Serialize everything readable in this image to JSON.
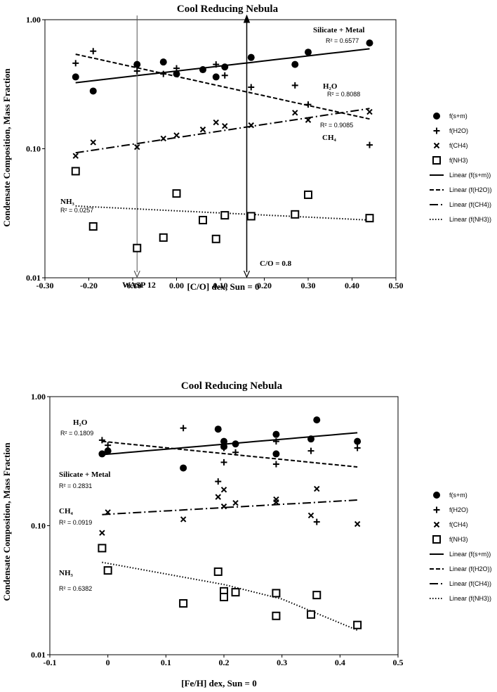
{
  "chart_data": [
    {
      "type": "scatter",
      "title": "Cool Reducing Nebula",
      "xlabel": "[C/O] dex, Sun = 0",
      "ylabel": "Condensate Composition, Mass Fraction",
      "xlim": [
        -0.3,
        0.5
      ],
      "ylim": [
        0.01,
        1.0
      ],
      "yscale": "log",
      "x_ticks": [
        "-0.30",
        "-0.20",
        "-0.10",
        "0.00",
        "0.10",
        "0.20",
        "0.30",
        "0.40",
        "0.50"
      ],
      "y_ticks": [
        "0.01",
        "0.10",
        "1.00"
      ],
      "grid": false,
      "legend_position": "right",
      "series": [
        {
          "name": "f(s+m)",
          "marker": "circle",
          "points": [
            [
              -0.23,
              0.36
            ],
            [
              -0.19,
              0.28
            ],
            [
              -0.09,
              0.45
            ],
            [
              -0.03,
              0.47
            ],
            [
              0.0,
              0.38
            ],
            [
              0.06,
              0.41
            ],
            [
              0.09,
              0.36
            ],
            [
              0.11,
              0.43
            ],
            [
              0.17,
              0.51
            ],
            [
              0.27,
              0.45
            ],
            [
              0.3,
              0.56
            ],
            [
              0.44,
              0.66
            ]
          ]
        },
        {
          "name": "f(H2O)",
          "marker": "plus",
          "points": [
            [
              -0.23,
              0.46
            ],
            [
              -0.19,
              0.57
            ],
            [
              -0.09,
              0.4
            ],
            [
              -0.03,
              0.38
            ],
            [
              0.0,
              0.42
            ],
            [
              0.09,
              0.45
            ],
            [
              0.11,
              0.37
            ],
            [
              0.17,
              0.3
            ],
            [
              0.27,
              0.31
            ],
            [
              0.3,
              0.22
            ],
            [
              0.44,
              0.107
            ]
          ]
        },
        {
          "name": "f(CH4)",
          "marker": "cross",
          "points": [
            [
              -0.23,
              0.088
            ],
            [
              -0.19,
              0.112
            ],
            [
              -0.09,
              0.103
            ],
            [
              -0.03,
              0.12
            ],
            [
              0.0,
              0.127
            ],
            [
              0.06,
              0.141
            ],
            [
              0.09,
              0.16
            ],
            [
              0.11,
              0.15
            ],
            [
              0.17,
              0.152
            ],
            [
              0.27,
              0.19
            ],
            [
              0.3,
              0.167
            ],
            [
              0.44,
              0.193
            ]
          ]
        },
        {
          "name": "f(NH3)",
          "marker": "square",
          "points": [
            [
              -0.23,
              0.067
            ],
            [
              -0.19,
              0.025
            ],
            [
              -0.09,
              0.017
            ],
            [
              -0.03,
              0.0205
            ],
            [
              0.0,
              0.045
            ],
            [
              0.06,
              0.028
            ],
            [
              0.09,
              0.02
            ],
            [
              0.11,
              0.0305
            ],
            [
              0.17,
              0.03
            ],
            [
              0.27,
              0.031
            ],
            [
              0.3,
              0.044
            ],
            [
              0.44,
              0.029
            ]
          ]
        }
      ],
      "trendlines": [
        {
          "name": "Linear (f(s+m))",
          "style": "solid",
          "x": [
            -0.23,
            0.44
          ],
          "y": [
            0.325,
            0.595
          ]
        },
        {
          "name": "Linear (f(H2O))",
          "style": "dashed",
          "x": [
            -0.23,
            0.44
          ],
          "y": [
            0.54,
            0.17
          ]
        },
        {
          "name": "Linear (f(CH4))",
          "style": "dashdot",
          "x": [
            -0.23,
            0.44
          ],
          "y": [
            0.093,
            0.205
          ]
        },
        {
          "name": "Linear (f(NH3))",
          "style": "dotted",
          "x": [
            -0.23,
            0.44
          ],
          "y": [
            0.036,
            0.028
          ]
        }
      ],
      "vlines": [
        {
          "x": -0.09,
          "label": "WASP 12",
          "color": "#555555",
          "direction": "down"
        },
        {
          "x": 0.16,
          "label": "C/O = 0.8",
          "color": "#000000",
          "direction": "both"
        }
      ],
      "annotations": [
        {
          "label": "Silicate + Metal",
          "r2": "R² = 0.6577"
        },
        {
          "label": "H₂O",
          "r2": "R² = 0.8088"
        },
        {
          "label": "CH₄",
          "r2": "R² = 0.9085"
        },
        {
          "label": "NH₃",
          "r2": "R² = 0.0257"
        }
      ]
    },
    {
      "type": "scatter",
      "title": "Cool Reducing Nebula",
      "xlabel": "[Fe/H] dex, Sun = 0",
      "ylabel": "Condensate Composition, Mass Fraction",
      "xlim": [
        -0.1,
        0.5
      ],
      "ylim": [
        0.01,
        1.0
      ],
      "yscale": "log",
      "x_ticks": [
        "-0.1",
        "0",
        "0.1",
        "0.2",
        "0.3",
        "0.4",
        "0.5"
      ],
      "y_ticks": [
        "0.01",
        "0.10",
        "1.00"
      ],
      "grid": false,
      "legend_position": "right",
      "series": [
        {
          "name": "f(s+m)",
          "marker": "circle",
          "points": [
            [
              -0.01,
              0.36
            ],
            [
              0.0,
              0.38
            ],
            [
              0.13,
              0.28
            ],
            [
              0.19,
              0.56
            ],
            [
              0.2,
              0.45
            ],
            [
              0.2,
              0.41
            ],
            [
              0.22,
              0.43
            ],
            [
              0.29,
              0.51
            ],
            [
              0.29,
              0.36
            ],
            [
              0.35,
              0.47
            ],
            [
              0.36,
              0.66
            ],
            [
              0.43,
              0.45
            ]
          ]
        },
        {
          "name": "f(H2O)",
          "marker": "plus",
          "points": [
            [
              -0.01,
              0.46
            ],
            [
              0.0,
              0.42
            ],
            [
              0.13,
              0.57
            ],
            [
              0.19,
              0.22
            ],
            [
              0.2,
              0.31
            ],
            [
              0.2,
              0.4
            ],
            [
              0.22,
              0.37
            ],
            [
              0.29,
              0.45
            ],
            [
              0.29,
              0.3
            ],
            [
              0.35,
              0.38
            ],
            [
              0.36,
              0.107
            ],
            [
              0.43,
              0.4
            ]
          ]
        },
        {
          "name": "f(CH4)",
          "marker": "cross",
          "points": [
            [
              -0.01,
              0.088
            ],
            [
              0.0,
              0.127
            ],
            [
              0.13,
              0.112
            ],
            [
              0.19,
              0.167
            ],
            [
              0.2,
              0.19
            ],
            [
              0.2,
              0.141
            ],
            [
              0.22,
              0.15
            ],
            [
              0.29,
              0.16
            ],
            [
              0.29,
              0.152
            ],
            [
              0.35,
              0.12
            ],
            [
              0.36,
              0.193
            ],
            [
              0.43,
              0.103
            ]
          ]
        },
        {
          "name": "f(NH3)",
          "marker": "square",
          "points": [
            [
              -0.01,
              0.067
            ],
            [
              0.0,
              0.045
            ],
            [
              0.13,
              0.025
            ],
            [
              0.19,
              0.044
            ],
            [
              0.2,
              0.031
            ],
            [
              0.2,
              0.028
            ],
            [
              0.22,
              0.0305
            ],
            [
              0.29,
              0.03
            ],
            [
              0.29,
              0.02
            ],
            [
              0.35,
              0.0205
            ],
            [
              0.36,
              0.029
            ],
            [
              0.43,
              0.017
            ]
          ]
        }
      ],
      "trendlines": [
        {
          "name": "Linear (f(s+m))",
          "style": "solid",
          "x": [
            -0.01,
            0.43
          ],
          "y": [
            0.355,
            0.525
          ]
        },
        {
          "name": "Linear (f(H2O))",
          "style": "dashed",
          "x": [
            -0.01,
            0.43
          ],
          "y": [
            0.45,
            0.285
          ]
        },
        {
          "name": "Linear (f(CH4))",
          "style": "dashdot",
          "x": [
            -0.01,
            0.43
          ],
          "y": [
            0.122,
            0.158
          ]
        },
        {
          "name": "Linear (f(NH3))",
          "style": "dotted",
          "x": [
            -0.01,
            0.2,
            0.3,
            0.43
          ],
          "y": [
            0.052,
            0.035,
            0.027,
            0.0155
          ]
        }
      ],
      "annotations": [
        {
          "label": "H₂O",
          "r2": "R² = 0.1809"
        },
        {
          "label": "Silicate + Metal",
          "r2": "R² = 0.2831"
        },
        {
          "label": "CH₄",
          "r2": "R² = 0.0919"
        },
        {
          "label": "NH₃",
          "r2": "R² = 0.6382"
        }
      ]
    }
  ]
}
